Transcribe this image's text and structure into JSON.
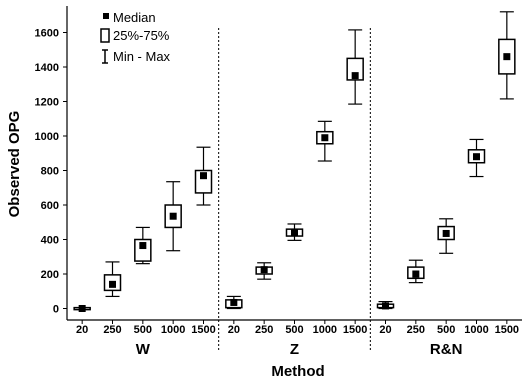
{
  "chart_data": {
    "type": "boxplot",
    "title": "",
    "xlabel": "Method",
    "ylabel": "Observed OPG",
    "ylim": [
      -60,
      1760
    ],
    "yticks": [
      0,
      200,
      400,
      600,
      800,
      1000,
      1200,
      1400,
      1600
    ],
    "groups": [
      "W",
      "Z",
      "R&N"
    ],
    "categories": [
      "20",
      "250",
      "500",
      "1000",
      "1500"
    ],
    "legend": {
      "position": "top-left",
      "entries": [
        {
          "symbol": "point",
          "label": "Median"
        },
        {
          "symbol": "box",
          "label": "25%-75%"
        },
        {
          "symbol": "whisker",
          "label": "Min - Max"
        }
      ]
    },
    "series": [
      {
        "group": "W",
        "boxes": [
          {
            "x": "20",
            "min": -5,
            "q1": -5,
            "median": 0,
            "q3": 5,
            "max": 5
          },
          {
            "x": "250",
            "min": 70,
            "q1": 105,
            "median": 140,
            "q3": 195,
            "max": 270
          },
          {
            "x": "500",
            "min": 260,
            "q1": 275,
            "median": 365,
            "q3": 400,
            "max": 470
          },
          {
            "x": "1000",
            "min": 335,
            "q1": 470,
            "median": 535,
            "q3": 600,
            "max": 735
          },
          {
            "x": "1500",
            "min": 600,
            "q1": 670,
            "median": 770,
            "q3": 800,
            "max": 935
          }
        ]
      },
      {
        "group": "Z",
        "boxes": [
          {
            "x": "20",
            "min": 0,
            "q1": 5,
            "median": 35,
            "q3": 50,
            "max": 70
          },
          {
            "x": "250",
            "min": 170,
            "q1": 200,
            "median": 225,
            "q3": 240,
            "max": 265
          },
          {
            "x": "500",
            "min": 395,
            "q1": 420,
            "median": 440,
            "q3": 460,
            "max": 490
          },
          {
            "x": "1000",
            "min": 855,
            "q1": 955,
            "median": 990,
            "q3": 1025,
            "max": 1085
          },
          {
            "x": "1500",
            "min": 1185,
            "q1": 1325,
            "median": 1350,
            "q3": 1450,
            "max": 1615
          }
        ]
      },
      {
        "group": "R&N",
        "boxes": [
          {
            "x": "20",
            "min": 0,
            "q1": 5,
            "median": 15,
            "q3": 25,
            "max": 40
          },
          {
            "x": "250",
            "min": 150,
            "q1": 175,
            "median": 200,
            "q3": 240,
            "max": 280
          },
          {
            "x": "500",
            "min": 320,
            "q1": 400,
            "median": 435,
            "q3": 475,
            "max": 520
          },
          {
            "x": "1000",
            "min": 765,
            "q1": 845,
            "median": 880,
            "q3": 920,
            "max": 980
          },
          {
            "x": "1500",
            "min": 1215,
            "q1": 1360,
            "median": 1460,
            "q3": 1560,
            "max": 1720
          }
        ]
      }
    ],
    "grid": false,
    "group_separators": "dotted"
  }
}
